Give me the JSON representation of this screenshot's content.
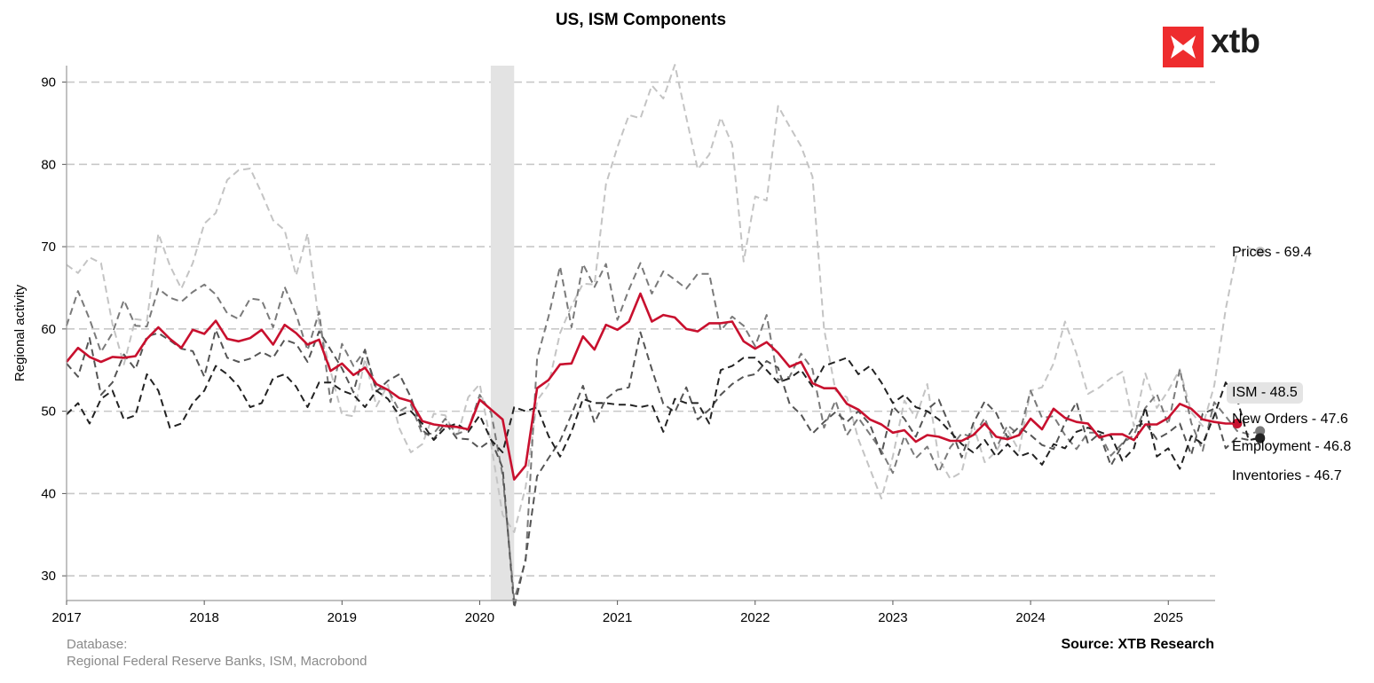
{
  "chart_data": {
    "type": "line",
    "title": "US, ISM Components",
    "ylabel": "Regional activity",
    "xlabel": "",
    "ylim": [
      27,
      92
    ],
    "xlim": [
      2017.0,
      2025.34
    ],
    "yticks": [
      30,
      40,
      50,
      60,
      70,
      80,
      90
    ],
    "xticks": [
      2017,
      2018,
      2019,
      2020,
      2021,
      2022,
      2023,
      2024,
      2025
    ],
    "grid": "horizontal dashed",
    "shaded_region": [
      2020.08,
      2020.25
    ],
    "x_start": 2017.0,
    "x_step_months": 1,
    "series": [
      {
        "name": "Prices",
        "end_label": "Prices - 69.4",
        "color": "#c4c4c4",
        "style": "dashed",
        "width": 2,
        "values": [
          67.8,
          66.8,
          68.7,
          68.0,
          60.6,
          55.7,
          61.2,
          61.0,
          71.6,
          67.7,
          64.9,
          68.0,
          72.8,
          74.1,
          78.1,
          79.3,
          79.5,
          76.5,
          73.2,
          72.0,
          66.5,
          71.6,
          60.7,
          54.9,
          49.6,
          49.4,
          56.4,
          50.6,
          53.2,
          47.9,
          45.0,
          46.0,
          49.7,
          49.5,
          46.7,
          51.7,
          53.3,
          45.9,
          37.4,
          35.3,
          40.8,
          51.3,
          53.2,
          59.5,
          62.8,
          65.5,
          65.4,
          77.6,
          82.1,
          86.0,
          85.6,
          89.6,
          88.0,
          92.1,
          85.7,
          79.4,
          81.2,
          85.7,
          82.4,
          68.2,
          76.1,
          75.6,
          87.1,
          84.6,
          82.2,
          78.5,
          60.0,
          52.5,
          51.7,
          46.6,
          43.0,
          39.4,
          44.5,
          51.3,
          49.2,
          53.3,
          44.2,
          41.8,
          42.6,
          48.4,
          43.8,
          45.1,
          47.7,
          45.2,
          52.5,
          52.9,
          55.8,
          60.9,
          57.0,
          52.1,
          52.9,
          54.0,
          54.8,
          48.2,
          54.6,
          50.4,
          52.5,
          55.1,
          49.9,
          48.2,
          53.1,
          62.4,
          69.4,
          69.8,
          69.4
        ]
      },
      {
        "name": "New Orders",
        "end_label": "New Orders - 47.6",
        "color": "#7a7a7a",
        "style": "dashed",
        "width": 2,
        "values": [
          60.4,
          64.6,
          61.2,
          57.2,
          59.5,
          63.5,
          60.4,
          60.3,
          64.9,
          63.8,
          63.3,
          64.5,
          65.4,
          64.2,
          61.9,
          61.2,
          63.7,
          63.5,
          60.2,
          65.1,
          61.8,
          57.4,
          62.1,
          51.1,
          58.2,
          55.5,
          57.4,
          52.7,
          52.7,
          50.0,
          50.8,
          47.2,
          47.3,
          49.1,
          47.2,
          47.8,
          52.0,
          49.8,
          42.2,
          27.1,
          31.8,
          56.4,
          61.5,
          67.6,
          60.2,
          67.9,
          65.1,
          67.9,
          61.1,
          64.8,
          68.0,
          64.3,
          67.0,
          66.0,
          64.9,
          66.7,
          66.7,
          59.8,
          61.5,
          60.4,
          57.9,
          61.7,
          53.8,
          54.2,
          57.0,
          55.1,
          48.0,
          51.3,
          47.1,
          49.2,
          47.2,
          45.2,
          42.5,
          47.0,
          44.3,
          45.7,
          42.6,
          45.6,
          47.3,
          46.8,
          49.2,
          45.5,
          48.3,
          47.1,
          52.5,
          49.2,
          49.4,
          47.1,
          45.4,
          47.4,
          47.4,
          44.6,
          46.1,
          47.1,
          50.4,
          52.1,
          48.4,
          55.1,
          48.6,
          45.2,
          51.1,
          49.4,
          47.6,
          47.2,
          47.6
        ]
      },
      {
        "name": "Employment",
        "end_label": "Employment - 46.8",
        "color": "#555555",
        "style": "dashed",
        "width": 2,
        "values": [
          55.8,
          54.2,
          58.9,
          52.0,
          53.5,
          56.9,
          55.1,
          59.1,
          59.5,
          58.6,
          57.6,
          57.3,
          54.2,
          59.9,
          56.5,
          56.0,
          56.4,
          57.2,
          56.5,
          58.7,
          58.2,
          56.0,
          59.7,
          57.5,
          55.2,
          52.3,
          57.5,
          52.4,
          53.7,
          54.5,
          51.7,
          47.7,
          46.6,
          48.6,
          46.7,
          46.6,
          45.5,
          46.5,
          43.1,
          26.1,
          32.1,
          42.1,
          44.3,
          46.4,
          49.6,
          53.1,
          48.6,
          51.5,
          52.6,
          52.9,
          59.6,
          55.1,
          50.9,
          49.9,
          52.9,
          49.0,
          50.2,
          52.0,
          53.3,
          54.2,
          54.5,
          56.1,
          55.3,
          50.9,
          49.6,
          47.3,
          48.7,
          49.9,
          48.7,
          50.0,
          48.4,
          44.8,
          50.6,
          49.1,
          46.9,
          50.2,
          51.4,
          48.1,
          44.4,
          48.5,
          51.2,
          49.8,
          46.8,
          48.1,
          47.1,
          45.9,
          45.4,
          48.6,
          51.1,
          46.1,
          47.3,
          43.4,
          45.9,
          48.1,
          48.6,
          46.6,
          47.4,
          48.5,
          44.7,
          49.7,
          50.3,
          45.5,
          46.8,
          46.5,
          46.8
        ]
      },
      {
        "name": "Inventories",
        "end_label": "Inventories - 46.7",
        "color": "#222222",
        "style": "dashed",
        "width": 2,
        "values": [
          49.6,
          51.0,
          48.5,
          51.5,
          52.5,
          49.0,
          49.5,
          54.5,
          52.5,
          48.0,
          48.5,
          51.0,
          52.5,
          55.5,
          54.5,
          53.0,
          50.5,
          51.0,
          54.0,
          54.5,
          53.0,
          50.5,
          53.5,
          53.5,
          52.5,
          52.0,
          50.5,
          52.5,
          51.5,
          49.5,
          50.0,
          48.5,
          46.5,
          48.0,
          48.5,
          47.5,
          49.5,
          46.5,
          45.0,
          50.5,
          50.0,
          50.5,
          47.0,
          44.5,
          47.5,
          51.5,
          51.0,
          51.0,
          50.8,
          50.8,
          50.5,
          50.8,
          47.5,
          51.5,
          51.0,
          51.0,
          48.5,
          55.0,
          55.5,
          56.5,
          56.5,
          55.0,
          53.5,
          54.0,
          55.0,
          53.0,
          55.5,
          56.0,
          56.5,
          54.5,
          55.5,
          53.5,
          51.0,
          52.0,
          50.5,
          50.0,
          49.0,
          47.5,
          46.0,
          45.0,
          46.5,
          44.5,
          46.0,
          44.5,
          45.0,
          43.5,
          46.0,
          45.5,
          47.5,
          48.0,
          47.5,
          47.0,
          44.0,
          45.5,
          50.5,
          44.5,
          45.5,
          43.0,
          47.0,
          46.0,
          49.5,
          53.5,
          51.5,
          46.5,
          46.7
        ]
      },
      {
        "name": "ISM",
        "end_label": "ISM - 48.5",
        "color": "#c8102e",
        "style": "solid",
        "width": 2.6,
        "values": [
          56.0,
          57.7,
          56.6,
          56.0,
          56.6,
          56.5,
          56.7,
          58.8,
          60.2,
          58.8,
          57.7,
          59.9,
          59.4,
          61.0,
          58.8,
          58.5,
          58.9,
          59.9,
          58.1,
          60.5,
          59.5,
          58.1,
          58.7,
          54.9,
          55.8,
          54.4,
          55.3,
          53.3,
          52.6,
          51.6,
          51.2,
          48.8,
          48.4,
          48.2,
          48.1,
          47.8,
          51.4,
          50.2,
          49.0,
          41.7,
          43.4,
          52.8,
          53.8,
          55.7,
          55.8,
          59.1,
          57.5,
          60.5,
          59.9,
          60.9,
          64.3,
          60.9,
          61.7,
          61.4,
          60.0,
          59.7,
          60.7,
          60.7,
          60.9,
          58.5,
          57.6,
          58.4,
          57.1,
          55.4,
          56.0,
          53.4,
          52.8,
          52.8,
          50.9,
          50.2,
          49.0,
          48.4,
          47.4,
          47.7,
          46.3,
          47.1,
          46.9,
          46.4,
          46.4,
          47.1,
          48.5,
          46.9,
          46.6,
          47.1,
          49.1,
          47.8,
          50.3,
          49.2,
          48.7,
          48.5,
          46.8,
          47.2,
          47.2,
          46.5,
          48.4,
          48.4,
          49.2,
          50.9,
          50.3,
          49.0,
          48.7,
          48.5,
          48.5
        ]
      }
    ],
    "footer_left": [
      "Database:",
      "Regional Federal Reserve Banks, ISM, Macrobond"
    ],
    "footer_right": "Source: XTB Research"
  },
  "logo": {
    "text": "xtb",
    "color": "#ee2c2e"
  }
}
